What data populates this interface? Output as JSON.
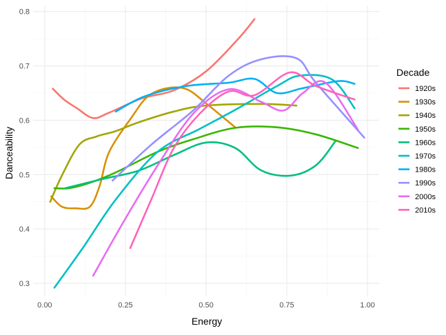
{
  "chart_data": {
    "type": "line",
    "x_label": "Energy",
    "y_label": "Danceability",
    "legend_title": "Decade",
    "legend_position": "right",
    "grid": true,
    "xlim": [
      -0.036,
      1.036
    ],
    "ylim": [
      0.276,
      0.811
    ],
    "xticks": [
      {
        "value": 0,
        "label": "0.00"
      },
      {
        "value": 0.25,
        "label": "0.25"
      },
      {
        "value": 0.5,
        "label": "0.50"
      },
      {
        "value": 0.75,
        "label": "0.75"
      },
      {
        "value": 1,
        "label": "1.00"
      }
    ],
    "yticks": [
      0.3,
      0.4,
      0.5,
      0.6,
      0.7,
      0.8
    ],
    "series": [
      {
        "name": "1920s",
        "color": "#F8766D",
        "x": [
          0.025,
          0.06,
          0.1,
          0.15,
          0.2,
          0.3,
          0.4,
          0.5,
          0.6,
          0.65
        ],
        "values": [
          0.658,
          0.638,
          0.622,
          0.604,
          0.614,
          0.64,
          0.655,
          0.69,
          0.75,
          0.786
        ]
      },
      {
        "name": "1930s",
        "color": "#D89000",
        "x": [
          0.02,
          0.053,
          0.096,
          0.14,
          0.17,
          0.2,
          0.27,
          0.32,
          0.38,
          0.44,
          0.5,
          0.59
        ],
        "values": [
          0.46,
          0.441,
          0.438,
          0.441,
          0.479,
          0.542,
          0.606,
          0.644,
          0.659,
          0.657,
          0.631,
          0.587
        ]
      },
      {
        "name": "1940s",
        "color": "#A3A500",
        "x": [
          0.017,
          0.053,
          0.107,
          0.16,
          0.22,
          0.29,
          0.4,
          0.5,
          0.67,
          0.78
        ],
        "values": [
          0.45,
          0.498,
          0.555,
          0.57,
          0.58,
          0.596,
          0.616,
          0.627,
          0.63,
          0.627
        ]
      },
      {
        "name": "1950s",
        "color": "#39B600",
        "x": [
          0.03,
          0.075,
          0.14,
          0.22,
          0.35,
          0.46,
          0.59,
          0.72,
          0.84,
          0.97
        ],
        "values": [
          0.475,
          0.475,
          0.485,
          0.504,
          0.542,
          0.565,
          0.586,
          0.587,
          0.574,
          0.549
        ]
      },
      {
        "name": "1960s",
        "color": "#00BF7D",
        "x": [
          0.064,
          0.18,
          0.29,
          0.4,
          0.5,
          0.59,
          0.67,
          0.76,
          0.84,
          0.9
        ],
        "values": [
          0.475,
          0.492,
          0.507,
          0.536,
          0.559,
          0.549,
          0.508,
          0.498,
          0.517,
          0.561
        ]
      },
      {
        "name": "1970s",
        "color": "#00BFC4",
        "x": [
          0.03,
          0.118,
          0.22,
          0.35,
          0.48,
          0.59,
          0.72,
          0.79,
          0.89,
          0.96
        ],
        "values": [
          0.292,
          0.365,
          0.454,
          0.542,
          0.584,
          0.619,
          0.663,
          0.682,
          0.675,
          0.622
        ]
      },
      {
        "name": "1980s",
        "color": "#00B0F6",
        "x": [
          0.22,
          0.31,
          0.44,
          0.57,
          0.65,
          0.72,
          0.8,
          0.91,
          0.96
        ],
        "values": [
          0.616,
          0.644,
          0.663,
          0.669,
          0.676,
          0.65,
          0.659,
          0.672,
          0.667
        ]
      },
      {
        "name": "1990s",
        "color": "#9590FF",
        "x": [
          0.21,
          0.33,
          0.46,
          0.57,
          0.67,
          0.78,
          0.84,
          0.99
        ],
        "values": [
          0.489,
          0.555,
          0.618,
          0.682,
          0.712,
          0.714,
          0.669,
          0.568
        ]
      },
      {
        "name": "2000s",
        "color": "#E76BF3",
        "x": [
          0.15,
          0.246,
          0.35,
          0.46,
          0.57,
          0.67,
          0.74,
          0.8,
          0.87,
          0.97
        ],
        "values": [
          0.314,
          0.415,
          0.517,
          0.612,
          0.657,
          0.634,
          0.618,
          0.65,
          0.669,
          0.583
        ]
      },
      {
        "name": "2010s",
        "color": "#FF62BC",
        "x": [
          0.265,
          0.33,
          0.4,
          0.48,
          0.57,
          0.65,
          0.76,
          0.84,
          0.96
        ],
        "values": [
          0.365,
          0.454,
          0.549,
          0.612,
          0.653,
          0.646,
          0.688,
          0.663,
          0.638
        ]
      }
    ]
  }
}
